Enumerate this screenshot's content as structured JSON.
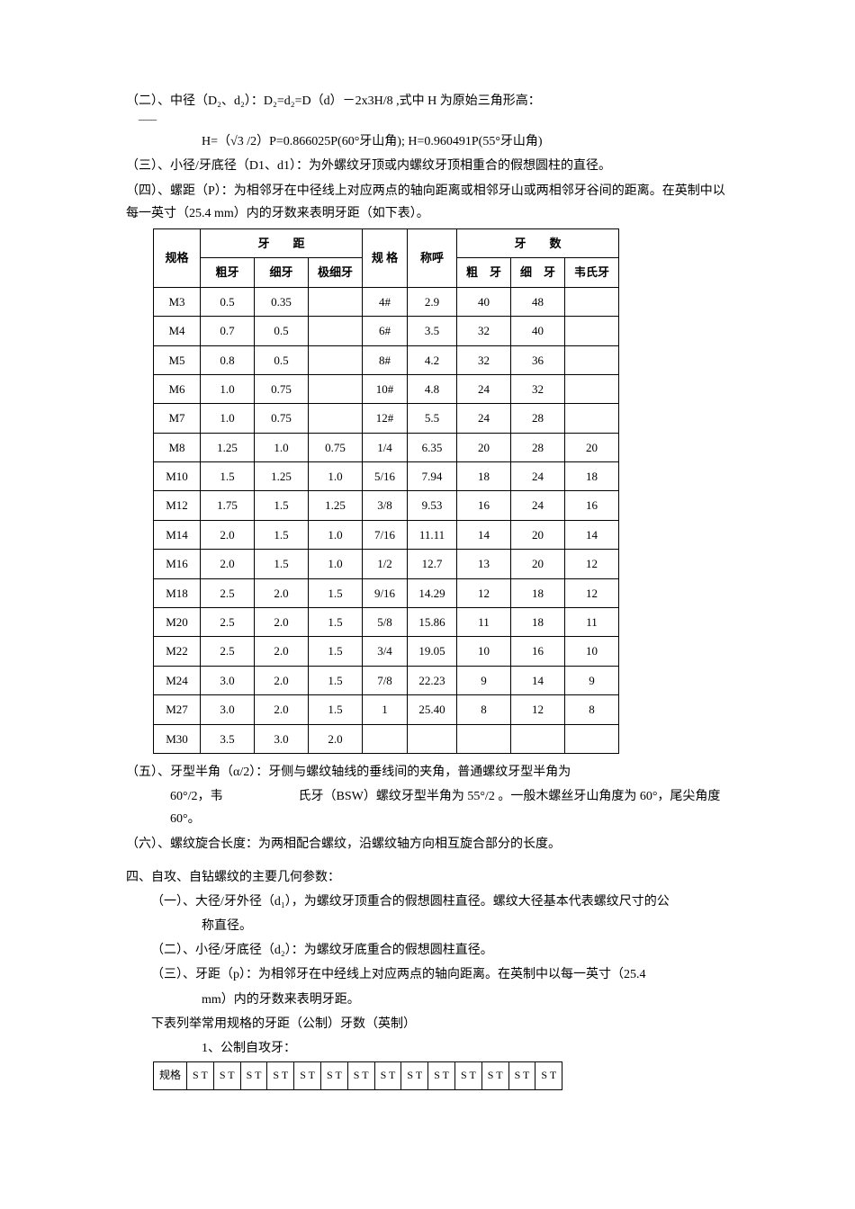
{
  "lines": {
    "l1": "（二）、中径（D₂、d₂）：D₂=d₂=D（d）－2x3H/8 ,式中 H 为原始三角形高：",
    "l2": "H=（√3 /2）P=0.866025P(60°牙山角);  H=0.960491P(55°牙山角)",
    "l3": "（三）、小径/牙底径（D1、d1）：为外螺纹牙顶或内螺纹牙顶相重合的假想圆柱的直径。",
    "l4": "（四）、螺距（P）：为相邻牙在中径线上对应两点的轴向距离或相邻牙山或两相邻牙谷间的距离。在英制中以每一英寸（25.4 mm）内的牙数来表明牙距（如下表）。",
    "l5a": "（五）、牙型半角（α/2）：牙侧与螺纹轴线的垂线间的夹角，普通螺纹牙型半角为",
    "l5b": "60°/2，韦　　　　　　氏牙（BSW）螺纹牙型半角为 55°/2 。一般木螺丝牙山角度为 60°，尾尖角度 60°。",
    "l6": "（六）、螺纹旋合长度：为两相配合螺纹，沿螺纹轴方向相互旋合部分的长度。",
    "h4": "四、自攻、自钻螺纹的主要几何参数：",
    "l7a": "（一）、大径/牙外径（d₁），为螺纹牙顶重合的假想圆柱直径。螺纹大径基本代表螺纹尺寸的公",
    "l7b": "称直径。",
    "l8": "（二）、小径/牙底径（d₂）：为螺纹牙底重合的假想圆柱直径。",
    "l9a": "（三）、牙距（p）：为相邻牙在中经线上对应两点的轴向距离。在英制中以每一英寸（25.4",
    "l9b": "mm）内的牙数来表明牙距。",
    "l10": "下表列举常用规格的牙距（公制）牙数（英制）",
    "l11": "1、公制自攻牙："
  },
  "table1": {
    "headers": {
      "c1": "规格",
      "c2": "牙　　距",
      "c2a": "粗牙",
      "c2b": "细牙",
      "c2c": "极细牙",
      "c3": "规 格",
      "c4": "称呼",
      "c5": "牙　　数",
      "c5a": "粗　牙",
      "c5b": "细　牙",
      "c5c": "韦氏牙"
    },
    "rows": [
      [
        "M3",
        "0.5",
        "0.35",
        "",
        "4#",
        "2.9",
        "40",
        "48",
        ""
      ],
      [
        "M4",
        "0.7",
        "0.5",
        "",
        "6#",
        "3.5",
        "32",
        "40",
        ""
      ],
      [
        "M5",
        "0.8",
        "0.5",
        "",
        "8#",
        "4.2",
        "32",
        "36",
        ""
      ],
      [
        "M6",
        "1.0",
        "0.75",
        "",
        "10#",
        "4.8",
        "24",
        "32",
        ""
      ],
      [
        "M7",
        "1.0",
        "0.75",
        "",
        "12#",
        "5.5",
        "24",
        "28",
        ""
      ],
      [
        "M8",
        "1.25",
        "1.0",
        "0.75",
        "1/4",
        "6.35",
        "20",
        "28",
        "20"
      ],
      [
        "M10",
        "1.5",
        "1.25",
        "1.0",
        "5/16",
        "7.94",
        "18",
        "24",
        "18"
      ],
      [
        "M12",
        "1.75",
        "1.5",
        "1.25",
        "3/8",
        "9.53",
        "16",
        "24",
        "16"
      ],
      [
        "M14",
        "2.0",
        "1.5",
        "1.0",
        "7/16",
        "11.11",
        "14",
        "20",
        "14"
      ],
      [
        "M16",
        "2.0",
        "1.5",
        "1.0",
        "1/2",
        "12.7",
        "13",
        "20",
        "12"
      ],
      [
        "M18",
        "2.5",
        "2.0",
        "1.5",
        "9/16",
        "14.29",
        "12",
        "18",
        "12"
      ],
      [
        "M20",
        "2.5",
        "2.0",
        "1.5",
        "5/8",
        "15.86",
        "11",
        "18",
        "11"
      ],
      [
        "M22",
        "2.5",
        "2.0",
        "1.5",
        "3/4",
        "19.05",
        "10",
        "16",
        "10"
      ],
      [
        "M24",
        "3.0",
        "2.0",
        "1.5",
        "7/8",
        "22.23",
        "9",
        "14",
        "9"
      ],
      [
        "M27",
        "3.0",
        "2.0",
        "1.5",
        "1",
        "25.40",
        "8",
        "12",
        "8"
      ],
      [
        "M30",
        "3.5",
        "3.0",
        "2.0",
        "",
        "",
        "",
        "",
        ""
      ]
    ],
    "col_widths": [
      "52",
      "60",
      "60",
      "60",
      "50",
      "55",
      "60",
      "60",
      "60"
    ]
  },
  "table2": {
    "h": "规格",
    "cells": [
      "S T",
      "S T",
      "S T",
      "S T",
      "S T",
      "S T",
      "S T",
      "S T",
      "S T",
      "S T",
      "S T",
      "S T",
      "S T",
      "S T"
    ]
  }
}
